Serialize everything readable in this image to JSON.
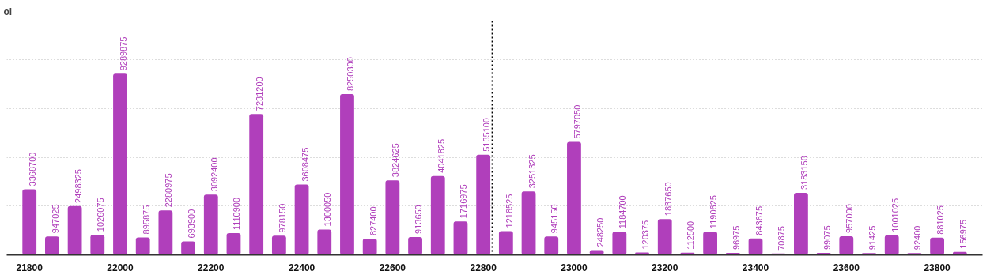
{
  "chart_data": {
    "type": "bar",
    "ylabel": "oi",
    "x": [
      21800,
      21850,
      21900,
      21950,
      22000,
      22050,
      22100,
      22150,
      22200,
      22250,
      22300,
      22350,
      22400,
      22450,
      22500,
      22550,
      22600,
      22650,
      22700,
      22750,
      22800,
      22850,
      22900,
      22950,
      23000,
      23050,
      23100,
      23150,
      23200,
      23250,
      23300,
      23350,
      23400,
      23450,
      23500,
      23550,
      23600,
      23650,
      23700,
      23750,
      23800,
      23850
    ],
    "values": [
      3368700,
      947025,
      2498325,
      1026075,
      9289875,
      895875,
      2280975,
      693900,
      3092400,
      1110900,
      7231200,
      978150,
      3608475,
      1300050,
      8250300,
      827400,
      3824625,
      913650,
      4041825,
      1716975,
      5135100,
      1218525,
      3251325,
      945150,
      5797050,
      248250,
      1184700,
      120375,
      1837650,
      112500,
      1190625,
      96975,
      843675,
      70875,
      3183150,
      99075,
      957000,
      91425,
      1001025,
      92400,
      881025,
      156975
    ],
    "color": "#b03fbb",
    "data_labels": true,
    "xlim": [
      21750,
      23900
    ],
    "xticks": [
      21800,
      22000,
      22200,
      22400,
      22600,
      22800,
      23000,
      23200,
      23400,
      23600,
      23800
    ],
    "ylim": [
      0,
      12000000
    ],
    "yticks": [
      {
        "value": 2500000,
        "label": null
      },
      {
        "value": 5000000,
        "label": null
      },
      {
        "value": 7500000,
        "label": null
      },
      {
        "value": 10000000,
        "label": null
      }
    ],
    "tick_labels": "x",
    "grid": "y",
    "ref_lines": [
      {
        "axis": "x",
        "value": 22820,
        "color": "#000000",
        "line_style": "dotted"
      }
    ]
  }
}
